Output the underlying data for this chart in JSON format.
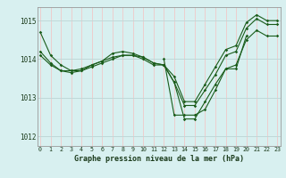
{
  "xlabel": "Graphe pression niveau de la mer (hPa)",
  "bg_color": "#cce8e8",
  "plot_bg": "#d8f0f0",
  "grid_v_color": "#f0c8c8",
  "grid_h_color": "#c0d8d8",
  "line_color": "#1a5c1a",
  "xlim": [
    -0.3,
    23.3
  ],
  "ylim": [
    1011.75,
    1015.35
  ],
  "yticks": [
    1012,
    1013,
    1014,
    1015
  ],
  "xticks": [
    0,
    1,
    2,
    3,
    4,
    5,
    6,
    7,
    8,
    9,
    10,
    11,
    12,
    13,
    14,
    15,
    16,
    17,
    18,
    19,
    20,
    21,
    22,
    23
  ],
  "series": [
    [
      1014.7,
      1014.1,
      1013.85,
      1013.7,
      1013.7,
      1013.85,
      1013.95,
      1014.15,
      1014.2,
      1014.15,
      1014.05,
      1013.9,
      1013.85,
      1013.4,
      1012.8,
      1012.8,
      1013.2,
      1013.6,
      1014.1,
      1014.2,
      1014.8,
      1015.05,
      1014.9,
      1014.9
    ],
    [
      1014.2,
      1013.9,
      1013.7,
      1013.7,
      1013.75,
      1013.85,
      1013.95,
      1014.05,
      1014.1,
      1014.1,
      1014.0,
      1013.85,
      1013.85,
      1013.55,
      1012.9,
      1012.9,
      1013.35,
      1013.8,
      1014.25,
      1014.35,
      1014.95,
      1015.15,
      1015.0,
      1015.0
    ],
    [
      1014.1,
      1013.85,
      1013.7,
      1013.65,
      1013.7,
      1013.8,
      1013.9,
      1014.0,
      1014.1,
      1014.1,
      1014.05,
      1013.9,
      1013.85,
      1013.4,
      1012.45,
      1012.45,
      1012.9,
      1013.35,
      1013.75,
      1013.85,
      1014.5,
      1014.75,
      1014.6,
      1014.6
    ],
    [
      null,
      null,
      null,
      null,
      null,
      null,
      null,
      null,
      null,
      null,
      null,
      null,
      1014.0,
      1012.55,
      1012.55,
      1012.55,
      1012.7,
      1013.2,
      1013.75,
      1013.75,
      1014.6,
      null,
      null,
      null
    ]
  ]
}
